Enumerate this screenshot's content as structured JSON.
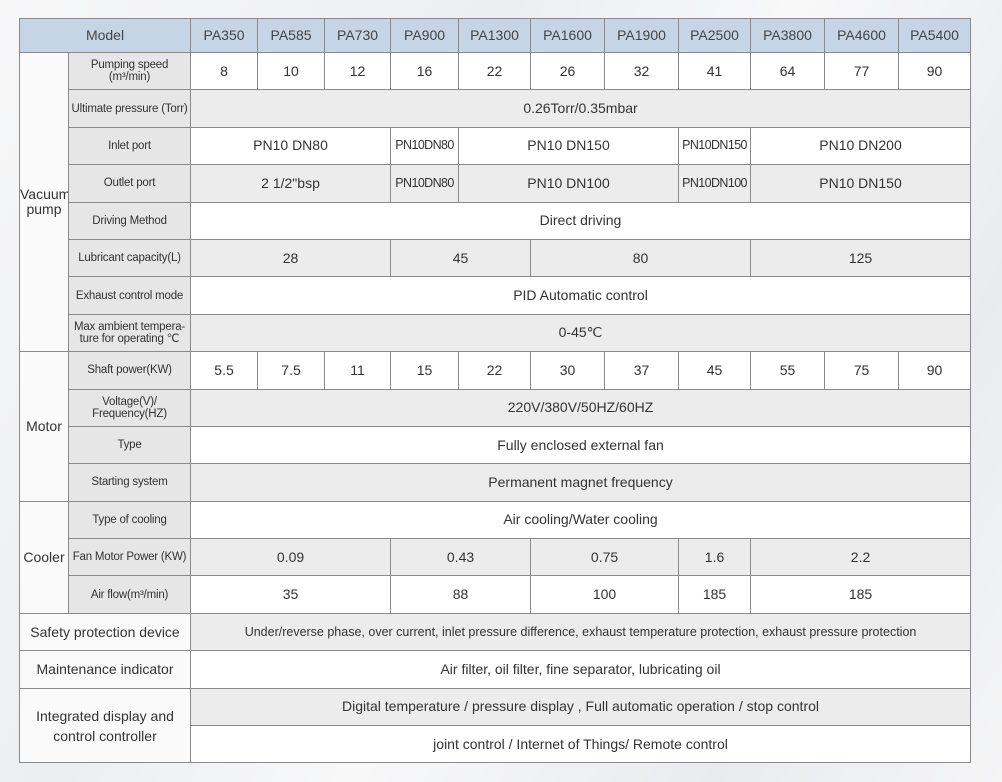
{
  "header": {
    "model_label": "Model",
    "models": [
      "PA350",
      "PA585",
      "PA730",
      "PA900",
      "PA1300",
      "PA1600",
      "PA1900",
      "PA2500",
      "PA3800",
      "PA4600",
      "PA5400"
    ]
  },
  "groups": [
    {
      "name": "Vacuum pump",
      "rows": [
        {
          "label": "Pumping speed (m³/min)",
          "cells": [
            {
              "value": "8",
              "span": 1
            },
            {
              "value": "10",
              "span": 1
            },
            {
              "value": "12",
              "span": 1
            },
            {
              "value": "16",
              "span": 1
            },
            {
              "value": "22",
              "span": 1
            },
            {
              "value": "26",
              "span": 1
            },
            {
              "value": "32",
              "span": 1
            },
            {
              "value": "41",
              "span": 1
            },
            {
              "value": "64",
              "span": 1
            },
            {
              "value": "77",
              "span": 1
            },
            {
              "value": "90",
              "span": 1
            }
          ]
        },
        {
          "label": "Ultimate pressure (Torr)",
          "cells": [
            {
              "value": "0.26Torr/0.35mbar",
              "span": 11
            }
          ]
        },
        {
          "label": "Inlet port",
          "cells": [
            {
              "value": "PN10 DN80",
              "span": 3
            },
            {
              "value": "PN10DN80",
              "span": 1,
              "compact": true
            },
            {
              "value": "PN10 DN150",
              "span": 3
            },
            {
              "value": "PN10DN150",
              "span": 1,
              "compact": true
            },
            {
              "value": "PN10 DN200",
              "span": 3
            }
          ]
        },
        {
          "label": "Outlet port",
          "cells": [
            {
              "value": "2 1/2\"bsp",
              "span": 3
            },
            {
              "value": "PN10DN80",
              "span": 1,
              "compact": true
            },
            {
              "value": "PN10 DN100",
              "span": 3
            },
            {
              "value": "PN10DN100",
              "span": 1,
              "compact": true
            },
            {
              "value": "PN10 DN150",
              "span": 3
            }
          ]
        },
        {
          "label": "Driving Method",
          "cells": [
            {
              "value": "Direct driving",
              "span": 11
            }
          ]
        },
        {
          "label": "Lubricant capacity(L)",
          "cells": [
            {
              "value": "28",
              "span": 3
            },
            {
              "value": "45",
              "span": 2
            },
            {
              "value": "80",
              "span": 3
            },
            {
              "value": "125",
              "span": 3
            }
          ]
        },
        {
          "label": "Exhaust control mode",
          "cells": [
            {
              "value": "PID Automatic control",
              "span": 11
            }
          ]
        },
        {
          "label": "Max ambient tempera-ture for operating ℃",
          "cells": [
            {
              "value": "0-45℃",
              "span": 11
            }
          ]
        }
      ]
    },
    {
      "name": "Motor",
      "rows": [
        {
          "label": "Shaft power(KW)",
          "cells": [
            {
              "value": "5.5",
              "span": 1
            },
            {
              "value": "7.5",
              "span": 1
            },
            {
              "value": "11",
              "span": 1
            },
            {
              "value": "15",
              "span": 1
            },
            {
              "value": "22",
              "span": 1
            },
            {
              "value": "30",
              "span": 1
            },
            {
              "value": "37",
              "span": 1
            },
            {
              "value": "45",
              "span": 1
            },
            {
              "value": "55",
              "span": 1
            },
            {
              "value": "75",
              "span": 1
            },
            {
              "value": "90",
              "span": 1
            }
          ]
        },
        {
          "label": "Voltage(V)/ Frequency(HZ)",
          "cells": [
            {
              "value": "220V/380V/50HZ/60HZ",
              "span": 11
            }
          ]
        },
        {
          "label": "Type",
          "cells": [
            {
              "value": "Fully enclosed external fan",
              "span": 11
            }
          ]
        },
        {
          "label": "Starting system",
          "cells": [
            {
              "value": "Permanent magnet frequency",
              "span": 11
            }
          ]
        }
      ]
    },
    {
      "name": "Cooler",
      "rows": [
        {
          "label": "Type of cooling",
          "cells": [
            {
              "value": "Air cooling/Water cooling",
              "span": 11
            }
          ]
        },
        {
          "label": "Fan Motor Power (KW)",
          "cells": [
            {
              "value": "0.09",
              "span": 3
            },
            {
              "value": "0.43",
              "span": 2
            },
            {
              "value": "0.75",
              "span": 2
            },
            {
              "value": "1.6",
              "span": 1
            },
            {
              "value": "2.2",
              "span": 3
            }
          ]
        },
        {
          "label": "Air flow(m³/min)",
          "cells": [
            {
              "value": "35",
              "span": 3
            },
            {
              "value": "88",
              "span": 2
            },
            {
              "value": "100",
              "span": 2
            },
            {
              "value": "185",
              "span": 1
            },
            {
              "value": "185",
              "span": 3
            }
          ]
        }
      ]
    }
  ],
  "footer_rows": [
    {
      "label": "Safety protection device",
      "values": [
        "Under/reverse phase, over current, inlet pressure difference, exhaust temperature protection, exhaust pressure protection"
      ],
      "small": true
    },
    {
      "label": "Maintenance indicator",
      "values": [
        "Air filter, oil filter, fine separator, lubricating oil"
      ]
    },
    {
      "label": "Integrated display and control controller",
      "values": [
        "Digital temperature /  pressure display  , Full automatic operation / stop control",
        "joint control / Internet of Things/ Remote control"
      ]
    }
  ]
}
